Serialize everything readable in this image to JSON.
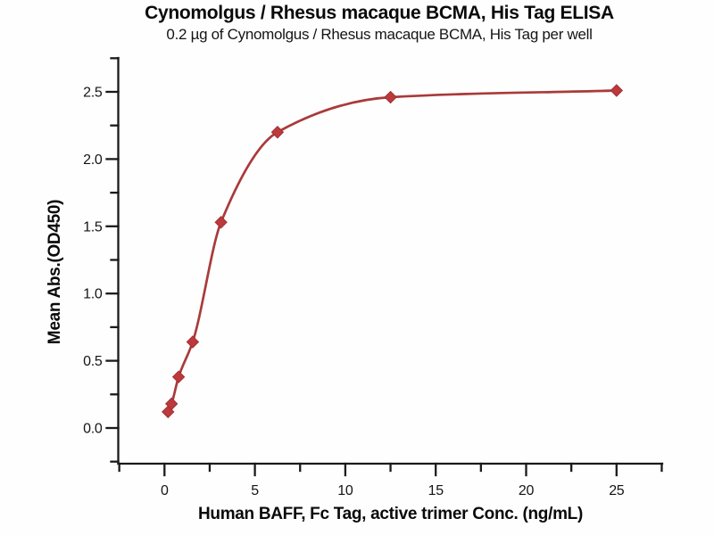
{
  "chart": {
    "title": "Cynomolgus / Rhesus macaque BCMA, His Tag ELISA",
    "subtitle": "0.2 µg of Cynomolgus / Rhesus macaque BCMA, His Tag per well",
    "xlabel": "Human BAFF, Fc Tag, active trimer Conc. (ng/mL)",
    "ylabel": "Mean Abs.(OD450)"
  },
  "chart_data": {
    "type": "scatter",
    "title": "Cynomolgus / Rhesus macaque BCMA, His Tag ELISA",
    "subtitle": "0.2 µg of Cynomolgus / Rhesus macaque BCMA, His Tag per well",
    "xlabel": "Human BAFF, Fc Tag, active trimer Conc. (ng/mL)",
    "ylabel": "Mean Abs.(OD450)",
    "x": [
      0.195,
      0.39,
      0.78,
      1.56,
      3.125,
      6.25,
      12.5,
      25
    ],
    "y": [
      0.12,
      0.18,
      0.38,
      0.64,
      1.53,
      2.2,
      2.46,
      2.51
    ],
    "fit_curve": "smooth sigmoidal fit through points",
    "marker": "diamond",
    "marker_color": "#be393b",
    "curve_color": "#aa3a3a",
    "axis_color": "#1a1a1a",
    "x_ticks": [
      0,
      5,
      10,
      15,
      20,
      25
    ],
    "x_tick_labels": [
      "0",
      "5",
      "10",
      "15",
      "20",
      "25"
    ],
    "x_minor_step": 2.5,
    "y_ticks": [
      0.0,
      0.5,
      1.0,
      1.5,
      2.0,
      2.5
    ],
    "y_tick_labels": [
      "0.0",
      "0.5",
      "1.0",
      "1.5",
      "2.0",
      "2.5"
    ],
    "y_minor_step": 0.25,
    "xlim": [
      -2.6,
      27.5
    ],
    "ylim": [
      -0.27,
      2.75
    ],
    "grid": false,
    "legend": "none",
    "background": "#fefefe"
  }
}
